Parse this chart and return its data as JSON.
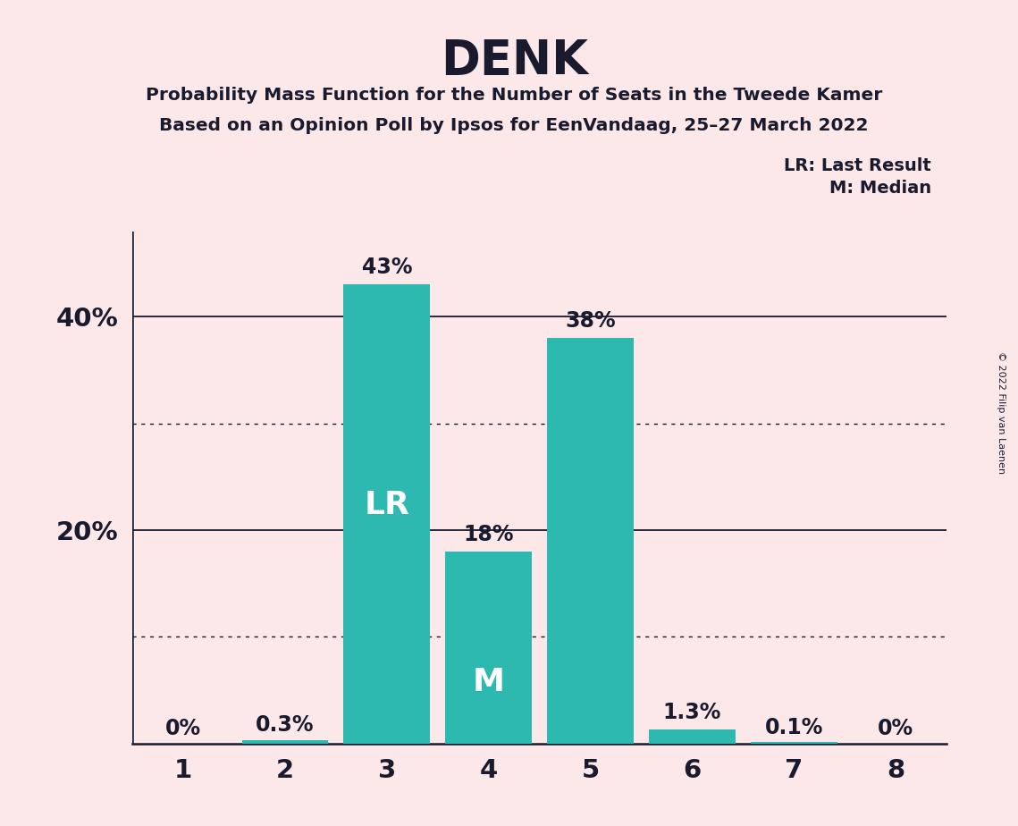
{
  "title": "DENK",
  "subtitle1": "Probability Mass Function for the Number of Seats in the Tweede Kamer",
  "subtitle2": "Based on an Opinion Poll by Ipsos for EenVandaag, 25–27 March 2022",
  "categories": [
    1,
    2,
    3,
    4,
    5,
    6,
    7,
    8
  ],
  "values": [
    0.0,
    0.3,
    43.0,
    18.0,
    38.0,
    1.3,
    0.1,
    0.0
  ],
  "bar_labels": [
    "0%",
    "0.3%",
    "43%",
    "18%",
    "38%",
    "1.3%",
    "0.1%",
    "0%"
  ],
  "bar_color": "#2db9b0",
  "background_color": "#fce8e8",
  "text_color": "#1a1a2e",
  "lr_bar": 3,
  "median_bar": 4,
  "lr_label": "LR",
  "median_label": "M",
  "legend_lr": "LR: Last Result",
  "legend_m": "M: Median",
  "copyright": "© 2022 Filip van Laenen",
  "yticks": [
    20,
    40
  ],
  "ytick_labels": [
    "20%",
    "40%"
  ],
  "ymin": 0,
  "ymax": 48,
  "dotted_lines": [
    10,
    30
  ]
}
